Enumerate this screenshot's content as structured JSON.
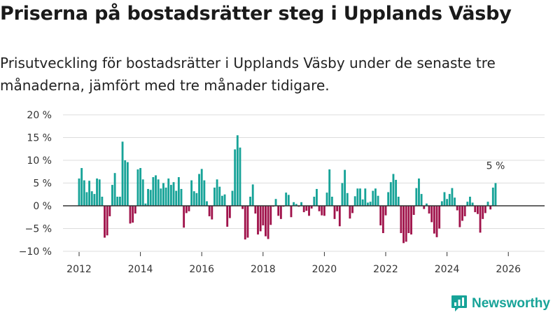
{
  "title": "Priserna på bostadsrätter steg i Upplands Väsby",
  "subtitle": "Prisutveckling för bostadsrätter i Upplands Väsby under de senaste tre månaderna, jämfört med tre månader tidigare.",
  "brand": {
    "name": "Newsworthy",
    "icon": "bar-chart-logo-icon",
    "color": "#17a398"
  },
  "colors": {
    "positive": "#17a398",
    "negative": "#a0134b",
    "grid": "#dddddd",
    "zero": "#333333"
  },
  "chart_data": {
    "type": "bar",
    "title": "Priserna på bostadsrätter steg i Upplands Väsby",
    "xlabel": "",
    "ylabel": "",
    "ylim": [
      -10,
      20
    ],
    "yticks": [
      -10,
      -5,
      0,
      5,
      10,
      15,
      20
    ],
    "ytick_labels": [
      "−10 %",
      "−5 %",
      "0 %",
      "5 %",
      "10 %",
      "15 %",
      "20 %"
    ],
    "xticks": [
      2012,
      2014,
      2016,
      2018,
      2020,
      2022,
      2024,
      2026
    ],
    "xtick_labels": [
      "2012",
      "2014",
      "2016",
      "2018",
      "2020",
      "2022",
      "2024",
      "2026"
    ],
    "start": {
      "year": 2012,
      "month": 1
    },
    "frequency": "monthly",
    "annotation": {
      "text": "5 %",
      "target": "last"
    },
    "values": [
      6,
      8.3,
      5.6,
      3,
      5.5,
      3.2,
      2.6,
      6,
      5.8,
      2,
      -7,
      -6.5,
      -2.3,
      4.6,
      7.2,
      2,
      2,
      14.1,
      10,
      9.6,
      -3.9,
      -3.7,
      -1.7,
      8,
      8.3,
      5.8,
      0.5,
      3.7,
      3.5,
      6.3,
      6.7,
      5.8,
      3.8,
      5,
      4,
      6,
      4.6,
      5.2,
      3.3,
      6.3,
      3.7,
      -4.8,
      -1.6,
      -1.2,
      5.6,
      3.2,
      2.8,
      7,
      8.1,
      5.6,
      1,
      -2.3,
      -3,
      4,
      5.8,
      4.2,
      2.2,
      2.5,
      -4.6,
      -2.7,
      3.3,
      12.4,
      15.5,
      12.8,
      -0.7,
      -7.4,
      -7,
      2,
      4.7,
      -1.7,
      -6.3,
      -5.6,
      -4.3,
      -6.7,
      -7.3,
      -4.2,
      -0.2,
      1.5,
      -2.2,
      -2.9,
      -0.2,
      2.9,
      2.4,
      -2.5,
      0.8,
      0.4,
      -0.2,
      0.8,
      -1.4,
      -1.1,
      -2.2,
      -0.6,
      2,
      3.7,
      -1.2,
      -2.1,
      -2.2,
      2.9,
      8,
      2,
      -2.9,
      -1.2,
      -4.5,
      5,
      7.9,
      2.8,
      -2.8,
      -1.6,
      2.1,
      3.8,
      3.8,
      1.4,
      3.8,
      0.7,
      0.9,
      3.3,
      3.8,
      2.2,
      -4.3,
      -6,
      -2.1,
      3,
      5.2,
      7,
      5.7,
      2,
      -6,
      -8.2,
      -7.9,
      -6,
      -6.3,
      -2,
      3.9,
      6,
      2.6,
      -0.7,
      0.5,
      -1.7,
      -3.6,
      -6.1,
      -6.9,
      -5,
      1,
      3,
      1.5,
      2.6,
      3.9,
      1.8,
      -1,
      -4.7,
      -3.3,
      -2.3,
      0.9,
      2,
      0.7,
      -1.4,
      -1.8,
      -5.9,
      -2.9,
      -1.6,
      0.9,
      -0.8,
      4,
      5
    ]
  }
}
